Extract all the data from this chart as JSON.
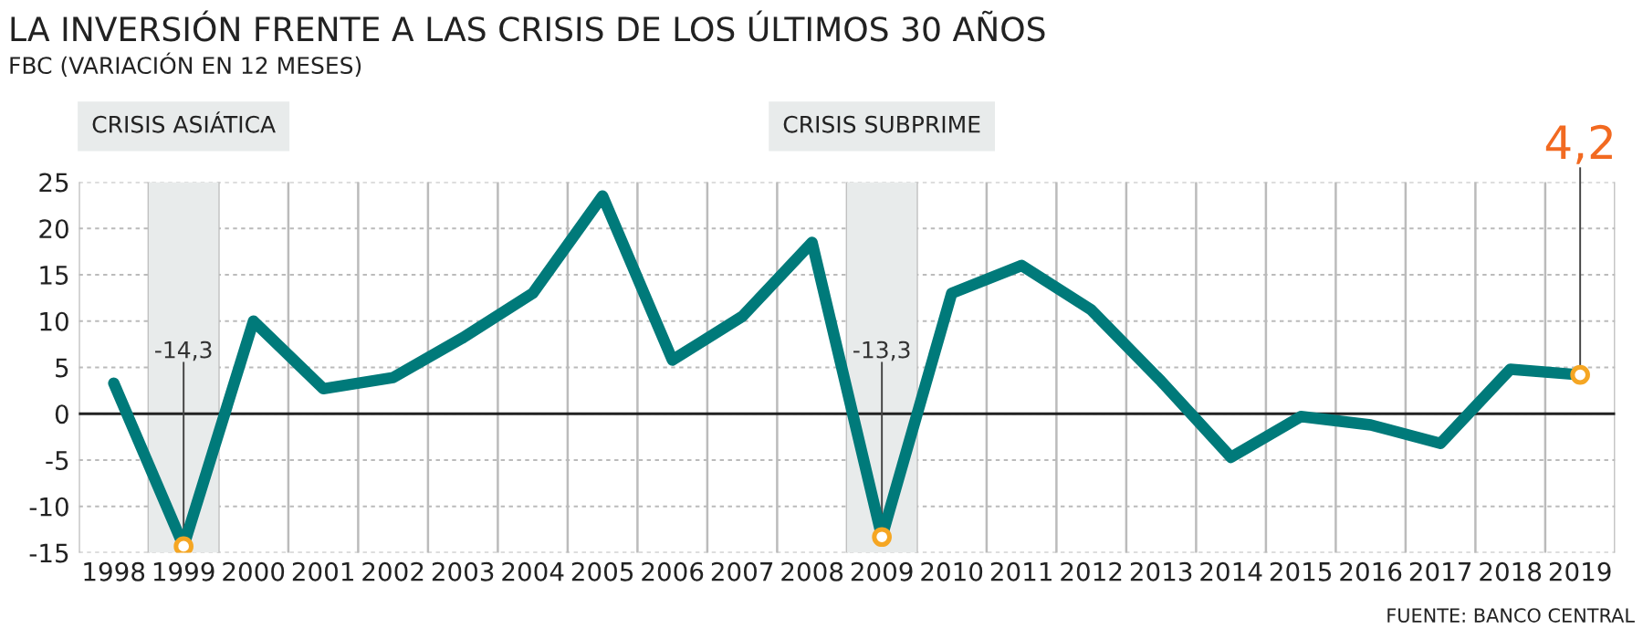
{
  "chart_data": {
    "type": "line",
    "title": "LA INVERSIÓN FRENTE A LAS CRISIS DE LOS ÚLTIMOS 30 AÑOS",
    "subtitle": "FBC (VARIACIÓN EN 12 MESES)",
    "categories": [
      "1998",
      "1999",
      "2000",
      "2001",
      "2002",
      "2003",
      "2004",
      "2005",
      "2006",
      "2007",
      "2008",
      "2009",
      "2010",
      "2011",
      "2012",
      "2013",
      "2014",
      "2015",
      "2016",
      "2017",
      "2018",
      "2019"
    ],
    "series": [
      {
        "color": "#007a7a",
        "values": [
          3.3,
          -14.3,
          10,
          2.7,
          3.9,
          8.2,
          13,
          23.5,
          5.8,
          10.5,
          18.5,
          -13.3,
          13,
          16,
          11.2,
          3.5,
          -4.7,
          -0.3,
          -1.2,
          -3.2,
          4.8,
          4.2
        ]
      }
    ],
    "ylim": [
      -15,
      25
    ],
    "yticks": [
      -15,
      -10,
      -5,
      0,
      5,
      10,
      15,
      20,
      25
    ],
    "grid": true,
    "marker": "none",
    "line_style": "solid",
    "ref_lines": [
      {
        "axis": "y",
        "value": 0,
        "color": "#222222"
      }
    ],
    "bands": [
      {
        "axis": "x",
        "from": "1999",
        "to": "1999",
        "label": "CRISIS ASIÁTICA",
        "color": "#e8ebeb"
      },
      {
        "axis": "x",
        "from": "2009",
        "to": "2009",
        "label": "CRISIS SUBPRIME",
        "color": "#e8ebeb"
      }
    ],
    "annotations": [
      {
        "text": "-14,3",
        "x": "1999",
        "y": -14.3
      },
      {
        "text": "-13,3",
        "x": "2009",
        "y": -13.3
      },
      {
        "text": "4,2",
        "x": "2019",
        "y": 4.2
      },
      "FUENTE: BANCO CENTRAL"
    ]
  }
}
